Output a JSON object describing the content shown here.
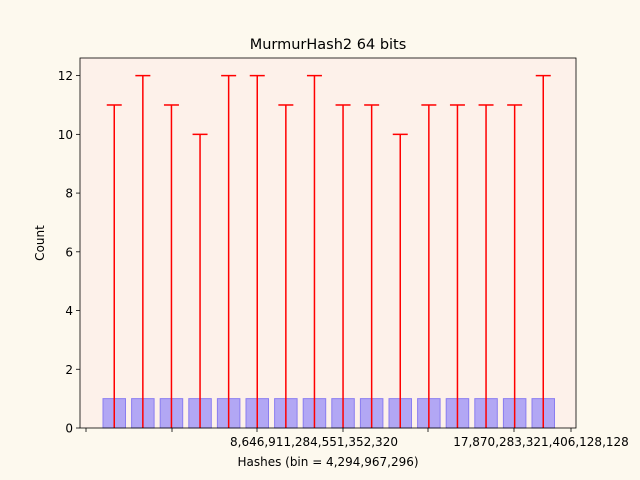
{
  "chart_data": {
    "type": "bar",
    "title": "MurmurHash2 64 bits",
    "xlabel": "Hashes (bin = 4,294,967,296)",
    "ylabel": "Count",
    "ylim": [
      0,
      12.6
    ],
    "yticks": [
      0,
      2,
      4,
      6,
      8,
      10,
      12
    ],
    "xtick_labels": [
      "8,646,911,284,551,352,320",
      "17,870,283,321,406,128,128"
    ],
    "values": [
      1,
      1,
      1,
      1,
      1,
      1,
      1,
      1,
      1,
      1,
      1,
      1,
      1,
      1,
      1,
      1
    ],
    "error_upper": [
      11,
      12,
      11,
      10,
      12,
      12,
      11,
      12,
      11,
      11,
      10,
      11,
      11,
      11,
      11,
      12
    ],
    "grid": false,
    "colors": {
      "figure_background": "#fdf9ee",
      "axes_background": "#fdf1ea",
      "bar_fill": "#b2a7f4",
      "bar_edge": "#8a7df0",
      "error_bar": "#ff0000"
    }
  }
}
